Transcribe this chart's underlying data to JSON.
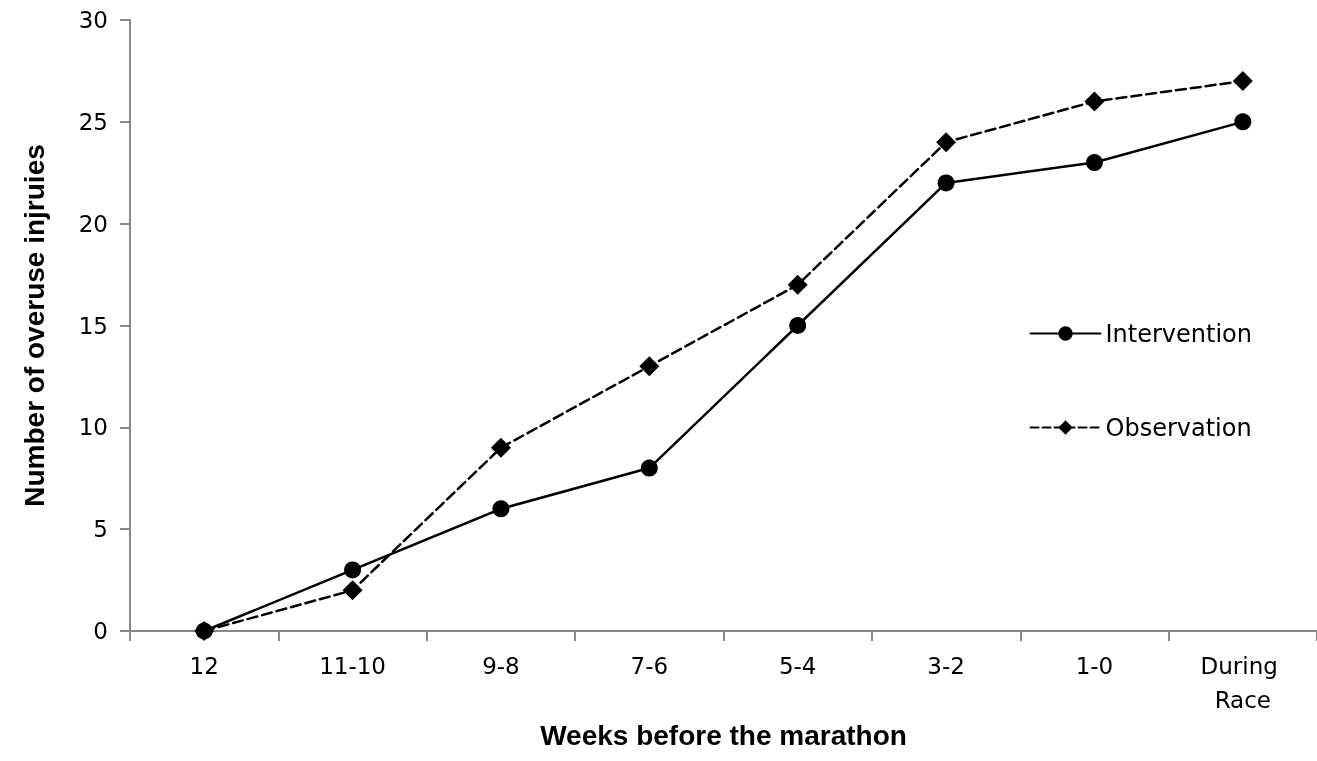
{
  "chart_data": {
    "type": "line",
    "xlabel": "Weeks before the marathon",
    "ylabel": "Number of overuse injruies",
    "categories": [
      "12",
      "11-10",
      "9-8",
      "7-6",
      "5-4",
      "3-2",
      "1-0",
      "During Race"
    ],
    "series": [
      {
        "name": "Intervention",
        "color": "#000000",
        "marker": "circle",
        "line_style": "solid",
        "values": [
          0,
          3,
          6,
          8,
          15,
          22,
          23,
          25
        ]
      },
      {
        "name": "Observation",
        "color": "#000000",
        "marker": "diamond",
        "line_style": "dashed",
        "values": [
          0,
          2,
          9,
          13,
          17,
          24,
          26,
          27
        ]
      }
    ],
    "ylim": [
      0,
      30
    ],
    "yticks": [
      0,
      5,
      10,
      15,
      20,
      25,
      30
    ],
    "grid": false,
    "legend": "right"
  }
}
